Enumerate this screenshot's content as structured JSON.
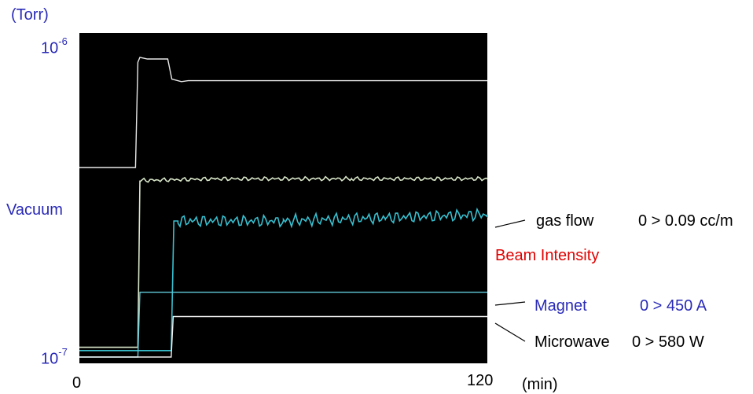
{
  "chart_data": {
    "type": "line",
    "title": "",
    "xlabel": "(min)",
    "ylabel": "(Torr)",
    "yscale": "log",
    "x_ticks": [
      "0",
      "120"
    ],
    "xlim": [
      0,
      120
    ],
    "ylim_labels": {
      "top_base": "10",
      "top_exp": "-6",
      "bottom_base": "10",
      "bottom_exp": "-7"
    },
    "y_axis_colored_label": "Vacuum",
    "background": "#000000",
    "series": [
      {
        "name": "Vacuum",
        "color": "#e8e8e8",
        "level": [
          [
            0,
            0.585
          ],
          [
            16.5,
            0.585
          ],
          [
            17.2,
            0.91
          ],
          [
            17.8,
            0.925
          ],
          [
            20,
            0.92
          ],
          [
            26,
            0.92
          ],
          [
            27.2,
            0.858
          ],
          [
            30,
            0.85
          ],
          [
            32,
            0.853
          ],
          [
            120,
            0.853
          ]
        ]
      },
      {
        "name": "gas flow",
        "range_label": "0 > 0.09 cc/m",
        "color": "#d8e6c8",
        "level": [
          [
            0,
            0.03
          ],
          [
            17.2,
            0.03
          ],
          [
            17.8,
            0.545
          ],
          [
            40,
            0.55
          ],
          [
            80,
            0.55
          ],
          [
            120,
            0.55
          ]
        ]
      },
      {
        "name": "Beam Intensity",
        "label_color": "#e00000",
        "color": "#38c0d0",
        "level": [
          [
            0,
            0.02
          ],
          [
            27,
            0.02
          ],
          [
            27.8,
            0.42
          ],
          [
            29,
            0.42
          ],
          [
            60,
            0.42
          ],
          [
            90,
            0.43
          ],
          [
            120,
            0.44
          ]
        ]
      },
      {
        "name": "Magnet",
        "range_label": "0 > 450 A",
        "label_color": "#3030c0",
        "color": "#60c8d8",
        "level": [
          [
            0,
            0.0
          ],
          [
            17.2,
            0.0
          ],
          [
            17.8,
            0.2
          ],
          [
            120,
            0.2
          ]
        ]
      },
      {
        "name": "Microwave",
        "range_label": "0 > 580 W",
        "color": "#f0f0f0",
        "level": [
          [
            0,
            0.0
          ],
          [
            27,
            0.0
          ],
          [
            27.6,
            0.125
          ],
          [
            120,
            0.125
          ]
        ]
      }
    ],
    "grid": false
  },
  "labels": {
    "unit_torr": "(Torr)",
    "vacuum": "Vacuum",
    "x_unit": "(min)",
    "x0": "0",
    "x120": "120",
    "gas_flow": "gas flow",
    "gas_flow_range": "0 > 0.09 cc/m",
    "beam": "Beam Intensity",
    "magnet": "Magnet",
    "magnet_range": "0 > 450 A",
    "microwave": "Microwave",
    "microwave_range": "0 > 580 W"
  },
  "colors": {
    "blue": "#2a2ab8",
    "red": "#e00000",
    "black": "#000000"
  }
}
